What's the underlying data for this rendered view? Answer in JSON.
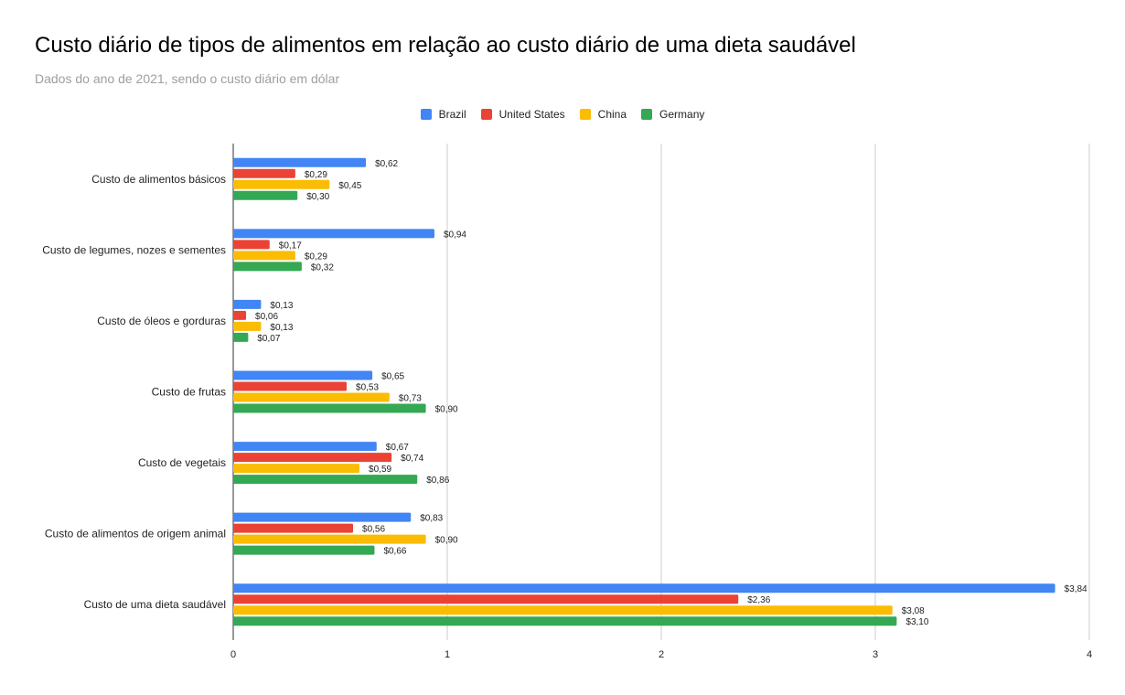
{
  "title": "Custo diário de tipos de alimentos em relação ao custo diário de uma dieta saudável",
  "subtitle": "Dados do ano de 2021, sendo o custo diário em dólar",
  "chart_data": {
    "type": "bar",
    "orientation": "horizontal",
    "title": "Custo diário de tipos de alimentos em relação ao custo diário de uma dieta saudável",
    "subtitle": "Dados do ano de 2021, sendo o custo diário em dólar",
    "categories": [
      "Custo de alimentos básicos",
      "Custo de legumes, nozes e sementes",
      "Custo de óleos e gorduras",
      "Custo de frutas",
      "Custo de vegetais",
      "Custo de alimentos de origem animal",
      "Custo de uma dieta saudável"
    ],
    "series": [
      {
        "name": "Brazil",
        "color": "#4285f4",
        "values": [
          0.62,
          0.94,
          0.13,
          0.65,
          0.67,
          0.83,
          3.84
        ],
        "labels": [
          "$0,62",
          "$0,94",
          "$0,13",
          "$0,65",
          "$0,67",
          "$0,83",
          "$3,84"
        ]
      },
      {
        "name": "United States",
        "color": "#ea4335",
        "values": [
          0.29,
          0.17,
          0.06,
          0.53,
          0.74,
          0.56,
          2.36
        ],
        "labels": [
          "$0,29",
          "$0,17",
          "$0,06",
          "$0,53",
          "$0,74",
          "$0,56",
          "$2,36"
        ]
      },
      {
        "name": "China",
        "color": "#fbbc04",
        "values": [
          0.45,
          0.29,
          0.13,
          0.73,
          0.59,
          0.9,
          3.08
        ],
        "labels": [
          "$0,45",
          "$0,29",
          "$0,13",
          "$0,73",
          "$0,59",
          "$0,90",
          "$3,08"
        ]
      },
      {
        "name": "Germany",
        "color": "#34a853",
        "values": [
          0.3,
          0.32,
          0.07,
          0.9,
          0.86,
          0.66,
          3.1
        ],
        "labels": [
          "$0,30",
          "$0,32",
          "$0,07",
          "$0,90",
          "$0,86",
          "$0,66",
          "$3,10"
        ]
      }
    ],
    "xlim": [
      0,
      4
    ],
    "xticks": [
      "0",
      "1",
      "2",
      "3",
      "4"
    ],
    "grid": true,
    "legend_position": "top-center",
    "xlabel": "",
    "ylabel": ""
  }
}
